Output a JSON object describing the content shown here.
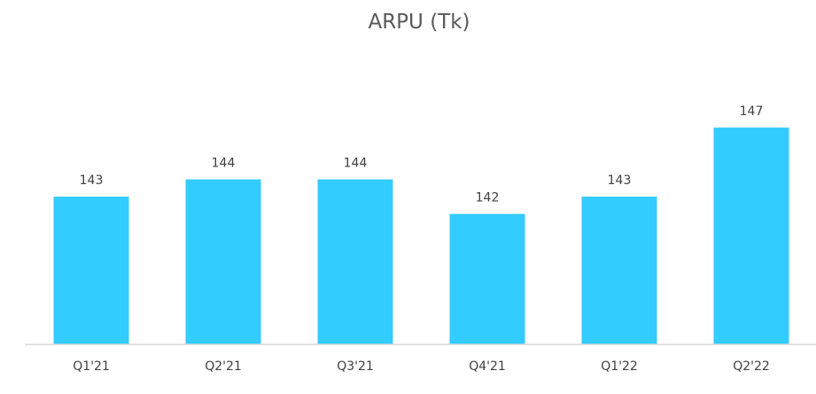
{
  "chart_data": {
    "type": "bar",
    "title": "ARPU (Tk)",
    "xlabel": "",
    "ylabel": "",
    "categories": [
      "Q1'21",
      "Q2'21",
      "Q3'21",
      "Q4'21",
      "Q1'22",
      "Q2'22"
    ],
    "values": [
      143,
      144,
      144,
      142,
      143,
      147
    ],
    "data_labels": [
      "143",
      "144",
      "144",
      "142",
      "143",
      "147"
    ],
    "bar_color": "#33ccff",
    "axis_color": "#d9d9d9",
    "grid": false,
    "legend": "none"
  }
}
